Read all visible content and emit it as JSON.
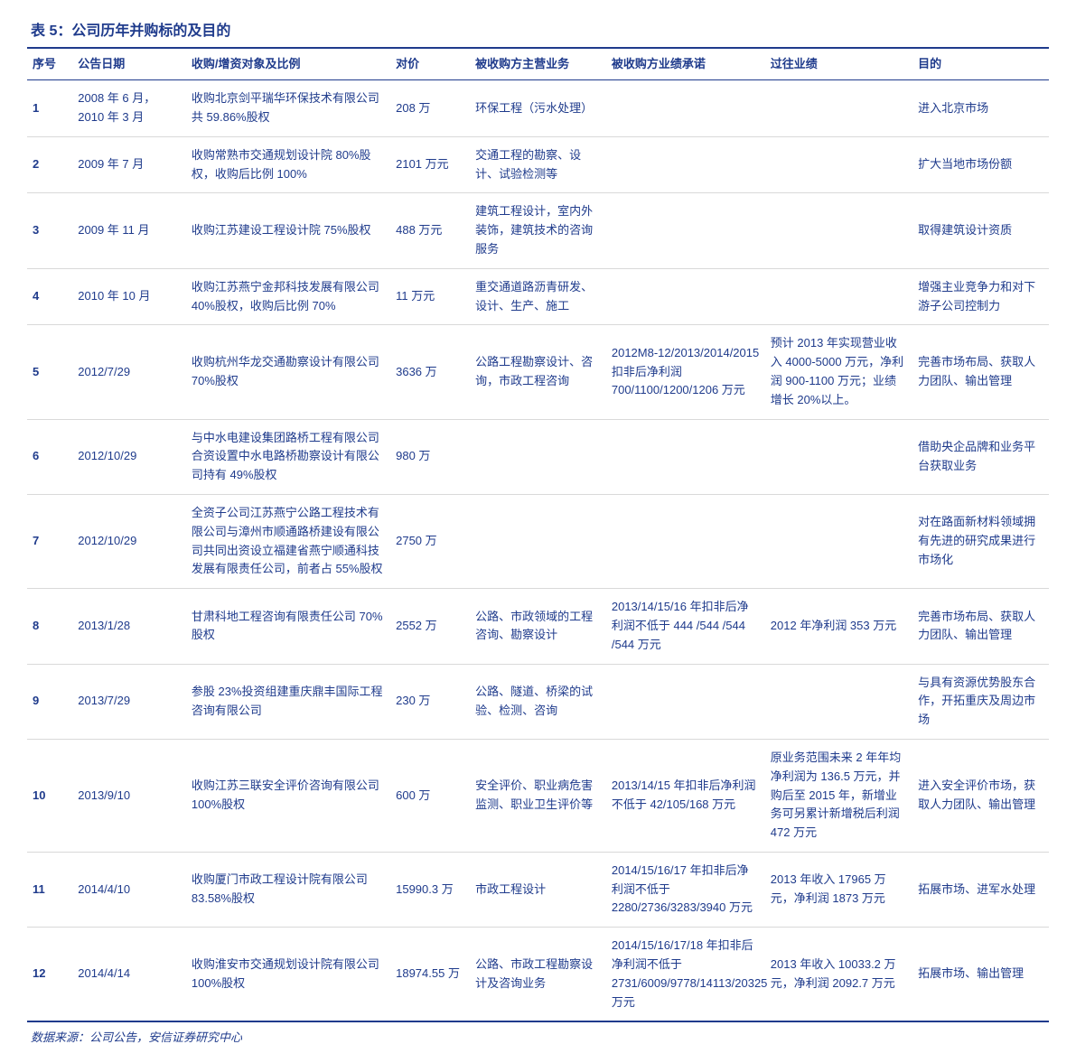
{
  "title": "表 5：公司历年并购标的及目的",
  "columns": [
    "序号",
    "公告日期",
    "收购/增资对象及比例",
    "对价",
    "被收购方主营业务",
    "被收购方业绩承诺",
    "过往业绩",
    "目的"
  ],
  "rows": [
    {
      "seq": "1",
      "date": "2008 年 6 月，2010 年 3 月",
      "target": "收购北京剑平瑞华环保技术有限公司共 59.86%股权",
      "price": "208 万",
      "business": "环保工程（污水处理）",
      "commitment": "",
      "history": "",
      "purpose": "进入北京市场"
    },
    {
      "seq": "2",
      "date": "2009 年 7 月",
      "target": "收购常熟市交通规划设计院 80%股权，收购后比例 100%",
      "price": "2101 万元",
      "business": "交通工程的勘察、设计、试验检测等",
      "commitment": "",
      "history": "",
      "purpose": "扩大当地市场份额"
    },
    {
      "seq": "3",
      "date": "2009 年 11 月",
      "target": "收购江苏建设工程设计院 75%股权",
      "price": "488 万元",
      "business": "建筑工程设计，室内外装饰，建筑技术的咨询服务",
      "commitment": "",
      "history": "",
      "purpose": "取得建筑设计资质"
    },
    {
      "seq": "4",
      "date": "2010 年 10 月",
      "target": "收购江苏燕宁金邦科技发展有限公司 40%股权，收购后比例 70%",
      "price": "11 万元",
      "business": "重交通道路沥青研发、设计、生产、施工",
      "commitment": "",
      "history": "",
      "purpose": "增强主业竞争力和对下游子公司控制力"
    },
    {
      "seq": "5",
      "date": "2012/7/29",
      "target": "收购杭州华龙交通勘察设计有限公司 70%股权",
      "price": "3636 万",
      "business": "公路工程勘察设计、咨询，市政工程咨询",
      "commitment": "2012M8-12/2013/2014/2015 扣非后净利润 700/1100/1200/1206 万元",
      "history": "预计 2013 年实现营业收入 4000-5000 万元，净利润 900-1100 万元；业绩增长 20%以上。",
      "purpose": "完善市场布局、获取人力团队、输出管理"
    },
    {
      "seq": "6",
      "date": "2012/10/29",
      "target": "与中水电建设集团路桥工程有限公司合资设置中水电路桥勘察设计有限公司持有 49%股权",
      "price": "980 万",
      "business": "",
      "commitment": "",
      "history": "",
      "purpose": "借助央企品牌和业务平台获取业务"
    },
    {
      "seq": "7",
      "date": "2012/10/29",
      "target": "全资子公司江苏燕宁公路工程技术有限公司与漳州市顺通路桥建设有限公司共同出资设立福建省燕宁顺通科技发展有限责任公司，前者占 55%股权",
      "price": "2750 万",
      "business": "",
      "commitment": "",
      "history": "",
      "purpose": "对在路面新材料领域拥有先进的研究成果进行市场化"
    },
    {
      "seq": "8",
      "date": "2013/1/28",
      "target": "甘肃科地工程咨询有限责任公司 70%股权",
      "price": "2552 万",
      "business": "公路、市政领域的工程咨询、勘察设计",
      "commitment": "2013/14/15/16 年扣非后净利润不低于 444 /544 /544 /544 万元",
      "history": "2012 年净利润 353 万元",
      "purpose": "完善市场布局、获取人力团队、输出管理"
    },
    {
      "seq": "9",
      "date": "2013/7/29",
      "target": "参股 23%投资组建重庆鼎丰国际工程咨询有限公司",
      "price": "230 万",
      "business": "公路、隧道、桥梁的试验、检测、咨询",
      "commitment": "",
      "history": "",
      "purpose": "与具有资源优势股东合作，开拓重庆及周边市场"
    },
    {
      "seq": "10",
      "date": "2013/9/10",
      "target": "收购江苏三联安全评价咨询有限公司 100%股权",
      "price": "600 万",
      "business": "安全评价、职业病危害监测、职业卫生评价等",
      "commitment": "2013/14/15 年扣非后净利润不低于 42/105/168 万元",
      "history": "原业务范围未来 2 年年均净利润为 136.5 万元，并购后至 2015 年，新增业务可另累计新增税后利润 472 万元",
      "purpose": "进入安全评价市场，获取人力团队、输出管理"
    },
    {
      "seq": "11",
      "date": "2014/4/10",
      "target": "收购厦门市政工程设计院有限公司 83.58%股权",
      "price": "15990.3 万",
      "business": "市政工程设计",
      "commitment": "2014/15/16/17 年扣非后净利润不低于 2280/2736/3283/3940 万元",
      "history": "2013 年收入 17965 万元，净利润 1873 万元",
      "purpose": "拓展市场、进军水处理"
    },
    {
      "seq": "12",
      "date": "2014/4/14",
      "target": "收购淮安市交通规划设计院有限公司 100%股权",
      "price": "18974.55 万",
      "business": "公路、市政工程勘察设计及咨询业务",
      "commitment": "2014/15/16/17/18 年扣非后净利润不低于 2731/6009/9778/14113/20325 万元",
      "history": "2013 年收入 10033.2 万元，净利润 2092.7 万元",
      "purpose": "拓展市场、输出管理"
    }
  ],
  "source": "数据来源：公司公告，安信证券研究中心",
  "colors": {
    "primary": "#1f3b8c",
    "background": "#ffffff",
    "border_light": "#d9d9d9"
  },
  "typography": {
    "title_fontsize": 16,
    "body_fontsize": 13
  }
}
